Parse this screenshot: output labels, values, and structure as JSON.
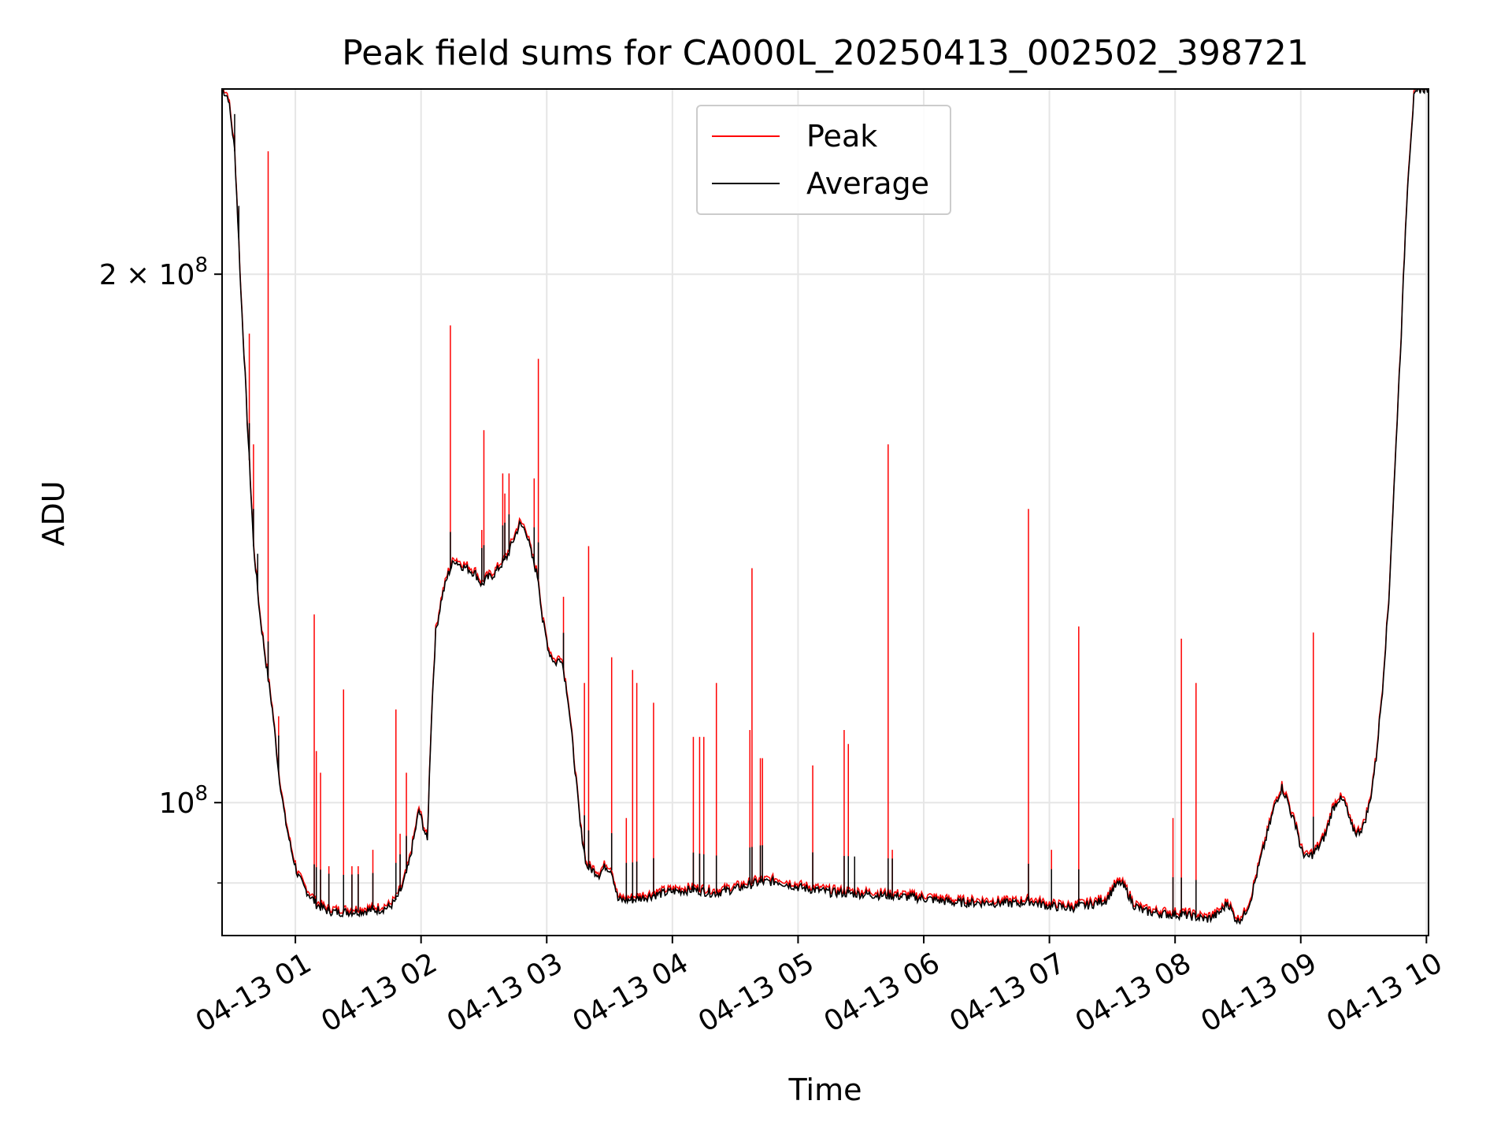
{
  "chart_data": {
    "type": "line",
    "title": "Peak field sums for CA000L_20250413_002502_398721",
    "xlabel": "Time",
    "ylabel": "ADU",
    "xaxis_type": "datetime",
    "xlim": [
      "2025-04-13 00:25",
      "2025-04-13 10:01"
    ],
    "ylim": [
      84000000,
      255000000
    ],
    "yscale": "log",
    "grid": true,
    "legend_position": "top-center",
    "x_tick_labels": [
      "04-13 01",
      "04-13 02",
      "04-13 03",
      "04-13 04",
      "04-13 05",
      "04-13 06",
      "04-13 07",
      "04-13 08",
      "04-13 09",
      "04-13 10"
    ],
    "x_ticks": [
      "2025-04-13 01:00",
      "2025-04-13 02:00",
      "2025-04-13 03:00",
      "2025-04-13 04:00",
      "2025-04-13 05:00",
      "2025-04-13 06:00",
      "2025-04-13 07:00",
      "2025-04-13 08:00",
      "2025-04-13 09:00",
      "2025-04-13 10:00"
    ],
    "y_ticks": [
      {
        "value": 100000000,
        "label": "10",
        "exponent": "8",
        "prefix": ""
      },
      {
        "value": 200000000,
        "label": "2 × 10",
        "exponent": "8",
        "prefix": ""
      }
    ],
    "y_minor_ticks": [
      90000000
    ],
    "series": [
      {
        "name": "Average",
        "color": "#000000",
        "points": [
          [
            "00:25",
            255000000
          ],
          [
            "00:28",
            252000000
          ],
          [
            "00:31",
            235000000
          ],
          [
            "00:34",
            195000000
          ],
          [
            "00:37",
            165000000
          ],
          [
            "00:40",
            140000000
          ],
          [
            "00:43",
            128000000
          ],
          [
            "00:46",
            120000000
          ],
          [
            "00:49",
            113000000
          ],
          [
            "00:52",
            104000000
          ],
          [
            "00:55",
            98000000
          ],
          [
            "00:58",
            94000000
          ],
          [
            "01:01",
            91000000
          ],
          [
            "01:04",
            89500000
          ],
          [
            "01:07",
            88500000
          ],
          [
            "01:10",
            87500000
          ],
          [
            "01:15",
            86800000
          ],
          [
            "01:20",
            86600000
          ],
          [
            "01:30",
            86700000
          ],
          [
            "01:40",
            86900000
          ],
          [
            "01:45",
            87200000
          ],
          [
            "01:48",
            88000000
          ],
          [
            "01:51",
            89500000
          ],
          [
            "01:54",
            92000000
          ],
          [
            "01:57",
            96000000
          ],
          [
            "01:59",
            99000000
          ],
          [
            "02:01",
            97000000
          ],
          [
            "02:03",
            95000000
          ],
          [
            "02:05",
            112000000
          ],
          [
            "02:07",
            125000000
          ],
          [
            "02:10",
            131000000
          ],
          [
            "02:13",
            135000000
          ],
          [
            "02:16",
            137500000
          ],
          [
            "02:19",
            136500000
          ],
          [
            "02:22",
            136000000
          ],
          [
            "02:26",
            135000000
          ],
          [
            "02:29",
            133000000
          ],
          [
            "02:31",
            134000000
          ],
          [
            "02:35",
            135000000
          ],
          [
            "02:38",
            136500000
          ],
          [
            "02:41",
            138000000
          ],
          [
            "02:44",
            141000000
          ],
          [
            "02:47",
            144000000
          ],
          [
            "02:50",
            143000000
          ],
          [
            "02:53",
            138000000
          ],
          [
            "02:56",
            134000000
          ],
          [
            "02:58",
            127000000
          ],
          [
            "03:01",
            122000000
          ],
          [
            "03:04",
            120000000
          ],
          [
            "03:07",
            121000000
          ],
          [
            "03:10",
            115000000
          ],
          [
            "03:13",
            106000000
          ],
          [
            "03:16",
            97000000
          ],
          [
            "03:19",
            92000000
          ],
          [
            "03:22",
            91500000
          ],
          [
            "03:25",
            91000000
          ],
          [
            "03:28",
            92000000
          ],
          [
            "03:31",
            91500000
          ],
          [
            "03:34",
            88000000
          ],
          [
            "03:40",
            88000000
          ],
          [
            "03:50",
            88500000
          ],
          [
            "04:00",
            89000000
          ],
          [
            "04:10",
            89200000
          ],
          [
            "04:20",
            88800000
          ],
          [
            "04:30",
            89300000
          ],
          [
            "04:40",
            90000000
          ],
          [
            "04:50",
            90200000
          ],
          [
            "05:00",
            89500000
          ],
          [
            "05:15",
            88900000
          ],
          [
            "05:30",
            88700000
          ],
          [
            "05:45",
            88500000
          ],
          [
            "06:00",
            88200000
          ],
          [
            "06:15",
            87700000
          ],
          [
            "06:30",
            87700000
          ],
          [
            "06:45",
            87600000
          ],
          [
            "06:50",
            87900000
          ],
          [
            "07:00",
            87300000
          ],
          [
            "07:10",
            87100000
          ],
          [
            "07:20",
            87500000
          ],
          [
            "07:27",
            88000000
          ],
          [
            "07:31",
            89500000
          ],
          [
            "07:34",
            90000000
          ],
          [
            "07:37",
            89000000
          ],
          [
            "07:40",
            87500000
          ],
          [
            "07:45",
            86700000
          ],
          [
            "07:55",
            86400000
          ],
          [
            "08:05",
            86300000
          ],
          [
            "08:15",
            85800000
          ],
          [
            "08:20",
            86300000
          ],
          [
            "08:23",
            87000000
          ],
          [
            "08:25",
            87800000
          ],
          [
            "08:28",
            86200000
          ],
          [
            "08:30",
            85600000
          ],
          [
            "08:33",
            86300000
          ],
          [
            "08:36",
            88000000
          ],
          [
            "08:39",
            91000000
          ],
          [
            "08:42",
            94000000
          ],
          [
            "08:45",
            97000000
          ],
          [
            "08:48",
            100000000
          ],
          [
            "08:51",
            102000000
          ],
          [
            "08:54",
            100000000
          ],
          [
            "08:56",
            98000000
          ],
          [
            "08:58",
            97000000
          ],
          [
            "09:00",
            94000000
          ],
          [
            "09:03",
            93000000
          ],
          [
            "09:06",
            93500000
          ],
          [
            "09:09",
            94500000
          ],
          [
            "09:12",
            96000000
          ],
          [
            "09:15",
            99000000
          ],
          [
            "09:18",
            100500000
          ],
          [
            "09:21",
            100000000
          ],
          [
            "09:24",
            97000000
          ],
          [
            "09:27",
            96000000
          ],
          [
            "09:30",
            97000000
          ],
          [
            "09:33",
            100000000
          ],
          [
            "09:36",
            106000000
          ],
          [
            "09:39",
            116000000
          ],
          [
            "09:42",
            130000000
          ],
          [
            "09:45",
            155000000
          ],
          [
            "09:48",
            185000000
          ],
          [
            "09:51",
            225000000
          ],
          [
            "09:54",
            252000000
          ],
          [
            "09:57",
            255000000
          ],
          [
            "10:01",
            255000000
          ]
        ]
      },
      {
        "name": "Peak",
        "color": "#ff0000",
        "spikes": [
          [
            "00:31",
            240000000
          ],
          [
            "00:33",
            210000000
          ],
          [
            "00:38",
            185000000
          ],
          [
            "00:40",
            160000000
          ],
          [
            "00:42",
            137000000
          ],
          [
            "00:47",
            235000000
          ],
          [
            "00:52",
            112000000
          ],
          [
            "01:09",
            128000000
          ],
          [
            "01:10",
            107000000
          ],
          [
            "01:12",
            104000000
          ],
          [
            "01:16",
            92000000
          ],
          [
            "01:23",
            116000000
          ],
          [
            "01:27",
            92000000
          ],
          [
            "01:30",
            92000000
          ],
          [
            "01:37",
            94000000
          ],
          [
            "01:48",
            113000000
          ],
          [
            "01:50",
            96000000
          ],
          [
            "01:53",
            104000000
          ],
          [
            "02:14",
            187000000
          ],
          [
            "02:29",
            143000000
          ],
          [
            "02:30",
            163000000
          ],
          [
            "02:39",
            154000000
          ],
          [
            "02:40",
            150000000
          ],
          [
            "02:42",
            154000000
          ],
          [
            "02:54",
            153000000
          ],
          [
            "02:56",
            179000000
          ],
          [
            "03:08",
            131000000
          ],
          [
            "03:18",
            117000000
          ],
          [
            "03:20",
            140000000
          ],
          [
            "03:31",
            121000000
          ],
          [
            "03:38",
            98000000
          ],
          [
            "03:41",
            119000000
          ],
          [
            "03:43",
            117000000
          ],
          [
            "03:51",
            114000000
          ],
          [
            "04:10",
            109000000
          ],
          [
            "04:13",
            109000000
          ],
          [
            "04:15",
            109000000
          ],
          [
            "04:21",
            117000000
          ],
          [
            "04:37",
            110000000
          ],
          [
            "04:38",
            136000000
          ],
          [
            "04:42",
            106000000
          ],
          [
            "04:43",
            106000000
          ],
          [
            "05:07",
            105000000
          ],
          [
            "05:22",
            110000000
          ],
          [
            "05:24",
            108000000
          ],
          [
            "05:27",
            91000000
          ],
          [
            "05:43",
            160000000
          ],
          [
            "05:45",
            94000000
          ],
          [
            "06:50",
            147000000
          ],
          [
            "07:01",
            94000000
          ],
          [
            "07:14",
            126000000
          ],
          [
            "07:59",
            98000000
          ],
          [
            "08:03",
            124000000
          ],
          [
            "08:10",
            117000000
          ],
          [
            "09:06",
            125000000
          ]
        ]
      }
    ]
  },
  "legend": {
    "peak_label": "Peak",
    "average_label": "Average"
  }
}
